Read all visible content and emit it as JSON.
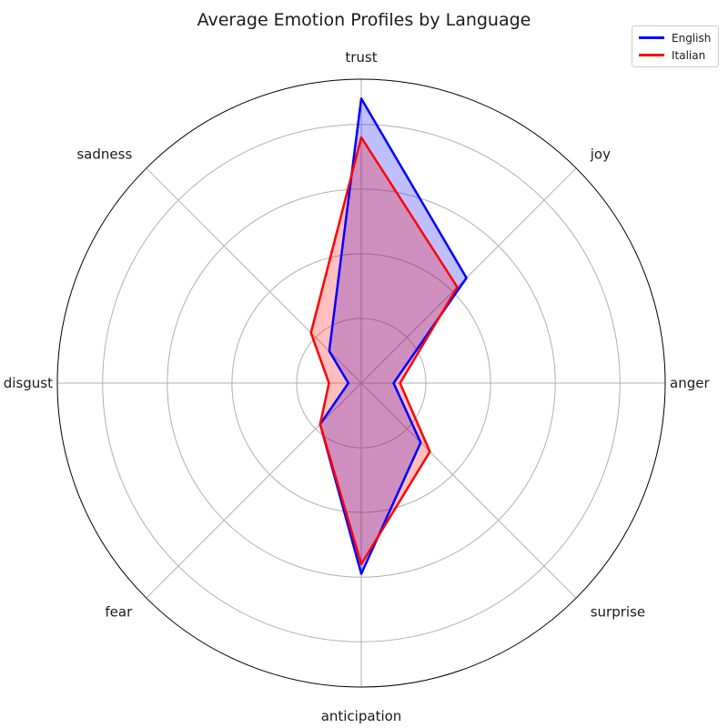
{
  "chart_data": {
    "type": "radar",
    "title": "Average Emotion Profiles by Language",
    "categories": [
      "anger",
      "joy",
      "trust",
      "sadness",
      "disgust",
      "fear",
      "anticipation",
      "surprise"
    ],
    "rlim": [
      0,
      0.47
    ],
    "rticks": [
      0.1,
      0.2,
      0.3,
      0.4
    ],
    "grid": true,
    "legend": "top-right",
    "series": [
      {
        "name": "English",
        "color": "#0000ff",
        "values": [
          0.05,
          0.23,
          0.44,
          0.07,
          0.02,
          0.09,
          0.295,
          0.13
        ]
      },
      {
        "name": "Italian",
        "color": "#ff0000",
        "values": [
          0.06,
          0.21,
          0.38,
          0.11,
          0.05,
          0.09,
          0.28,
          0.15
        ]
      }
    ]
  }
}
